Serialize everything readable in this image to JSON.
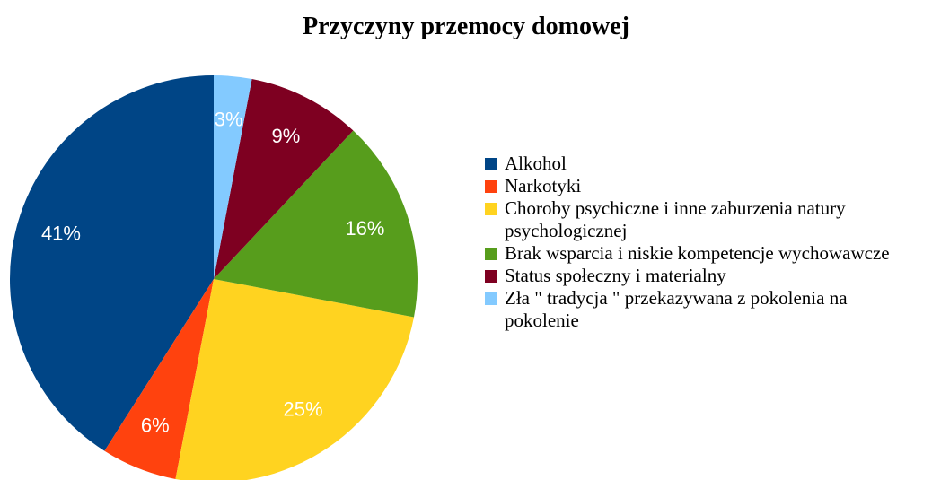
{
  "chart_data": {
    "type": "pie",
    "title": "Przyczyny przemocy domowej",
    "categories": [
      "Alkohol",
      "Narkotyki",
      "Choroby psychiczne i inne zaburzenia natury psychologicznej",
      "Brak wsparcia i niskie kompetencje wychowawcze",
      "Status społeczny i materialny",
      "Zła \" tradycja \" przekazywana z pokolenia na pokolenie"
    ],
    "values": [
      41,
      6,
      25,
      16,
      9,
      3
    ],
    "value_labels": [
      "41%",
      "6%",
      "25%",
      "16%",
      "9%",
      "3%"
    ],
    "colors": [
      "#004586",
      "#ff420e",
      "#ffd320",
      "#579d1c",
      "#7e0021",
      "#83caff"
    ],
    "legend": "right"
  }
}
